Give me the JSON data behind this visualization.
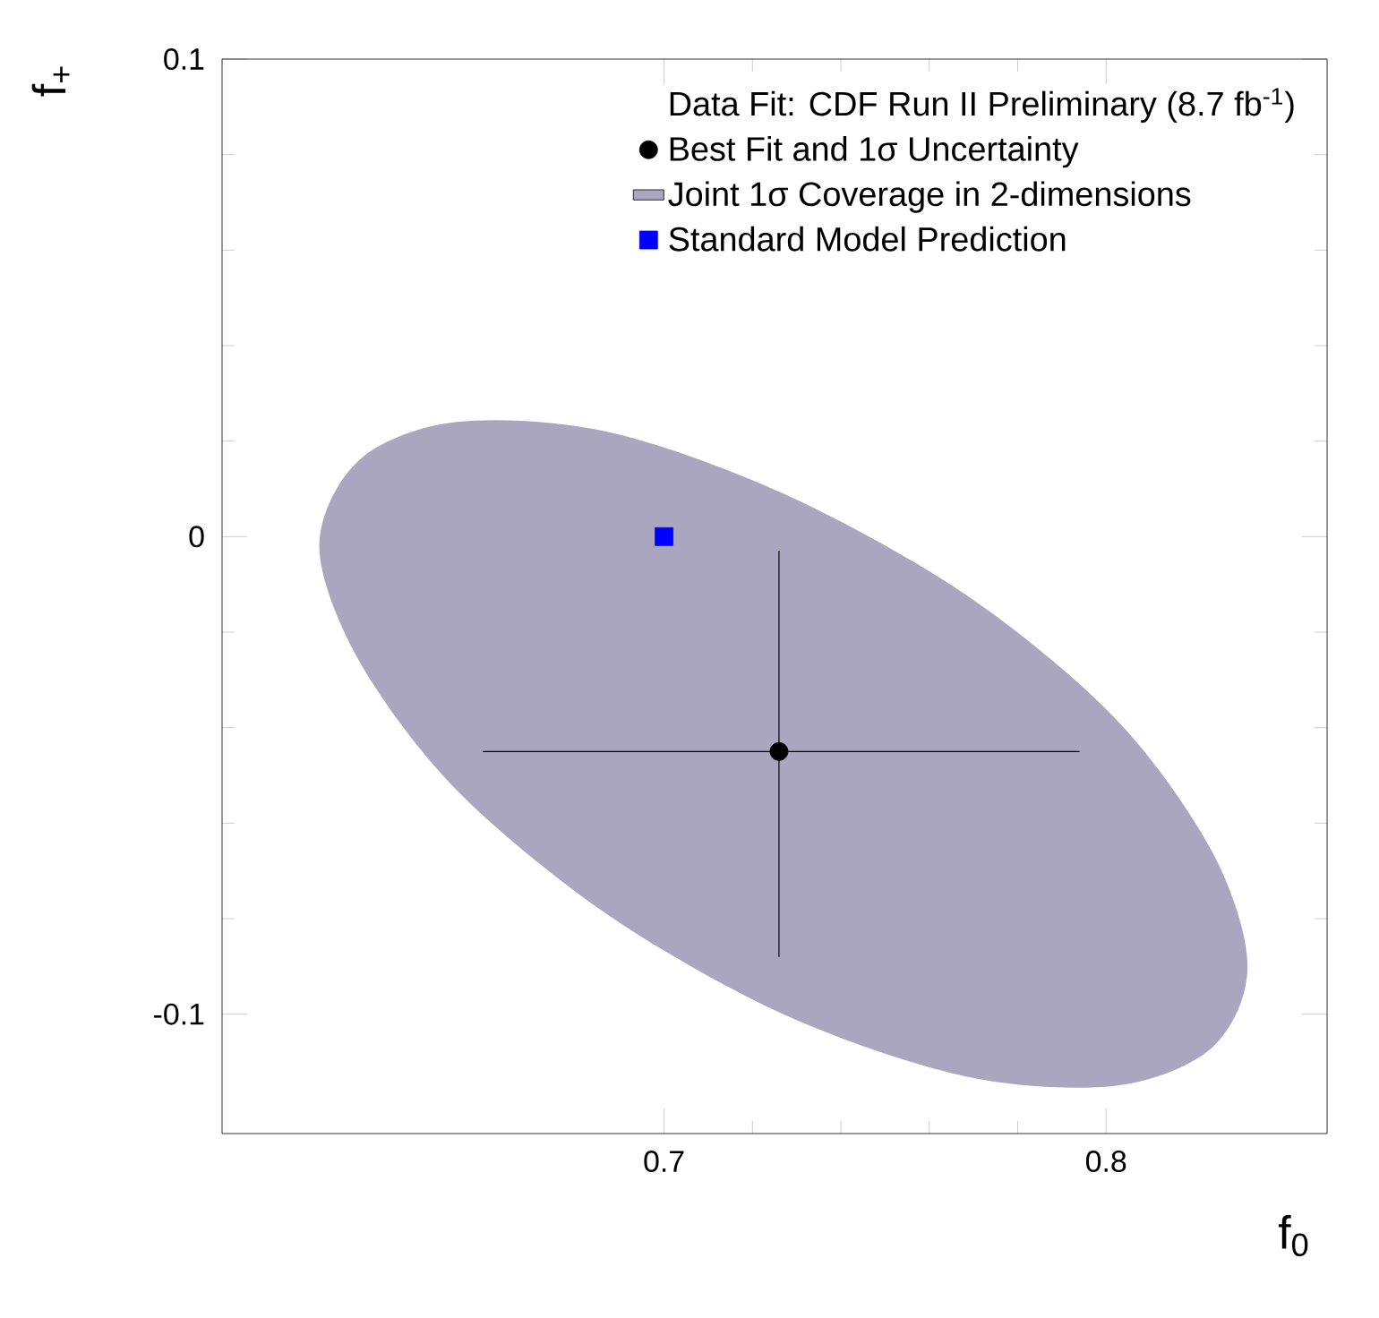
{
  "chart_data": {
    "type": "scatter",
    "xlabel": "f$_{0}$",
    "ylabel": "f$_{+}$",
    "legend_title": "Data Fit: CDF Run II Preliminary (8.7 fb$^{-1}$)",
    "xlim": [
      0.6,
      0.85
    ],
    "ylim": [
      -0.125,
      0.1
    ],
    "xticks": [
      0.7,
      0.8
    ],
    "yticks": [
      0.1,
      0,
      -0.1
    ],
    "legend": "top right",
    "series": [
      {
        "name": "Best Fit and 1σ Uncertainty",
        "type": "scatter",
        "color": "#000000",
        "marker": "circle",
        "x": [
          0.726
        ],
        "values": [
          -0.045
        ],
        "xerrors": [
          [
            0.659,
            0.794
          ]
        ],
        "errors": [
          [
            -0.088,
            -0.003
          ]
        ]
      },
      {
        "name": "Joint 1σ Coverage in 2-dimensions",
        "type": "area",
        "color": "#aaa6c0",
        "x": [
          0.832,
          0.824,
          0.802,
          0.768,
          0.727,
          0.687,
          0.653,
          0.631,
          0.622,
          0.631,
          0.653,
          0.687,
          0.727,
          0.768,
          0.802,
          0.824
        ],
        "values": [
          -0.09,
          -0.107,
          -0.115,
          -0.113,
          -0.1,
          -0.079,
          -0.053,
          -0.026,
          -0.002,
          0.016,
          0.024,
          0.022,
          0.009,
          -0.012,
          -0.038,
          -0.066
        ]
      },
      {
        "name": "Standard Model Prediction",
        "type": "scatter",
        "color": "#0000ff",
        "marker": "square",
        "x": [
          0.7
        ],
        "values": [
          0
        ]
      }
    ]
  }
}
